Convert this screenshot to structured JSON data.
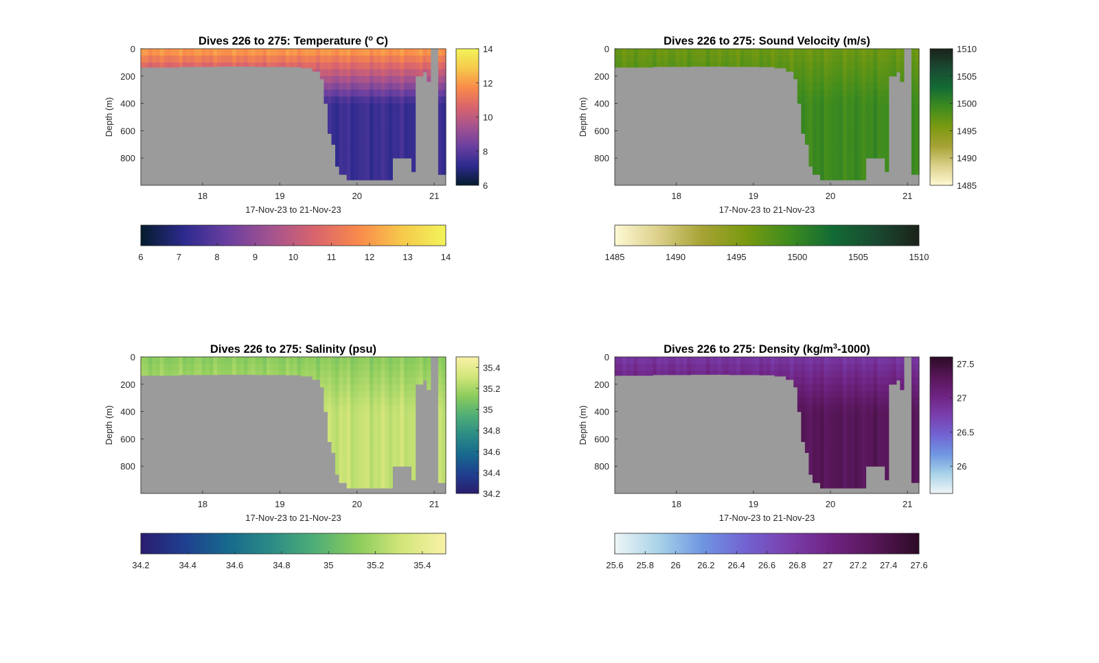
{
  "figure": {
    "background": "#ffffff",
    "no_data_color": "#9b9b9b"
  },
  "chart_data": [
    {
      "type": "heatmap",
      "title": "Dives 226 to 275: Temperature (",
      "title_sup": "o",
      "title_suffix": " C)",
      "xlabel": "17-Nov-23 to 21-Nov-23",
      "ylabel": "Depth (m)",
      "xlim": [
        17.2,
        21.15
      ],
      "ylim": [
        1000,
        0
      ],
      "x_ticks": [
        18,
        19,
        20,
        21
      ],
      "y_ticks": [
        0,
        200,
        400,
        600,
        800
      ],
      "clim": [
        6,
        14
      ],
      "colorbar_ticks": [
        6,
        8,
        10,
        12,
        14
      ],
      "hcolorbar_ticks": [
        6,
        7,
        8,
        9,
        10,
        11,
        12,
        13,
        14
      ],
      "colormap": [
        "#041c2c",
        "#2d2a8e",
        "#6a3fa0",
        "#a4538f",
        "#d9646d",
        "#f98a4b",
        "#f6c94b",
        "#f2f45a"
      ],
      "surface_value": 12.2,
      "deep_value": 7.4
    },
    {
      "type": "heatmap",
      "title": "Dives 226 to 275: Sound Velocity (m/s)",
      "xlabel": "17-Nov-23 to 21-Nov-23",
      "ylabel": "Depth (m)",
      "xlim": [
        17.2,
        21.15
      ],
      "ylim": [
        1000,
        0
      ],
      "x_ticks": [
        18,
        19,
        20,
        21
      ],
      "y_ticks": [
        0,
        200,
        400,
        600,
        800
      ],
      "clim": [
        1485,
        1510
      ],
      "colorbar_ticks": [
        1485,
        1490,
        1495,
        1500,
        1505,
        1510
      ],
      "hcolorbar_ticks": [
        1485,
        1490,
        1495,
        1500,
        1505,
        1510
      ],
      "colormap": [
        "#fdf9d4",
        "#dcd08a",
        "#a7a235",
        "#7a9a10",
        "#3f8c1e",
        "#126b34",
        "#1a4a32",
        "#1a2219"
      ],
      "surface_value": 1496.5,
      "deep_value": 1499.5
    },
    {
      "type": "heatmap",
      "title": "Dives 226 to 275: Salinity (psu)",
      "xlabel": "17-Nov-23 to 21-Nov-23",
      "ylabel": "Depth (m)",
      "xlim": [
        17.2,
        21.15
      ],
      "ylim": [
        1000,
        0
      ],
      "x_ticks": [
        18,
        19,
        20,
        21
      ],
      "y_ticks": [
        0,
        200,
        400,
        600,
        800
      ],
      "clim": [
        34.2,
        35.5
      ],
      "colorbar_ticks": [
        34.2,
        34.4,
        34.6,
        34.8,
        35,
        35.2,
        35.4
      ],
      "hcolorbar_ticks": [
        34.2,
        34.4,
        34.6,
        34.8,
        35,
        35.2,
        35.4
      ],
      "colormap": [
        "#2a1d6e",
        "#1f3f8f",
        "#17698d",
        "#2b8c86",
        "#4fae76",
        "#8ccc5c",
        "#d3e67a",
        "#f9f2a8"
      ],
      "surface_value": 35.12,
      "deep_value": 35.28
    },
    {
      "type": "heatmap",
      "title": "Dives 226 to 275: Density (kg/m",
      "title_sup": "3",
      "title_suffix": "-1000)",
      "xlabel": "17-Nov-23 to 21-Nov-23",
      "ylabel": "Depth (m)",
      "xlim": [
        17.2,
        21.15
      ],
      "ylim": [
        1000,
        0
      ],
      "x_ticks": [
        18,
        19,
        20,
        21
      ],
      "y_ticks": [
        0,
        200,
        400,
        600,
        800
      ],
      "clim": [
        25.6,
        27.6
      ],
      "colorbar_ticks": [
        26,
        26.5,
        27,
        27.5
      ],
      "hcolorbar_ticks": [
        25.6,
        25.8,
        26,
        26.2,
        26.4,
        26.6,
        26.8,
        27,
        27.2,
        27.4,
        27.6
      ],
      "colormap": [
        "#eef5f6",
        "#a9d3e8",
        "#6f97e2",
        "#7263d2",
        "#7a3fad",
        "#6e2382",
        "#561657",
        "#2c0b25"
      ],
      "surface_value": 26.82,
      "deep_value": 27.3
    }
  ]
}
